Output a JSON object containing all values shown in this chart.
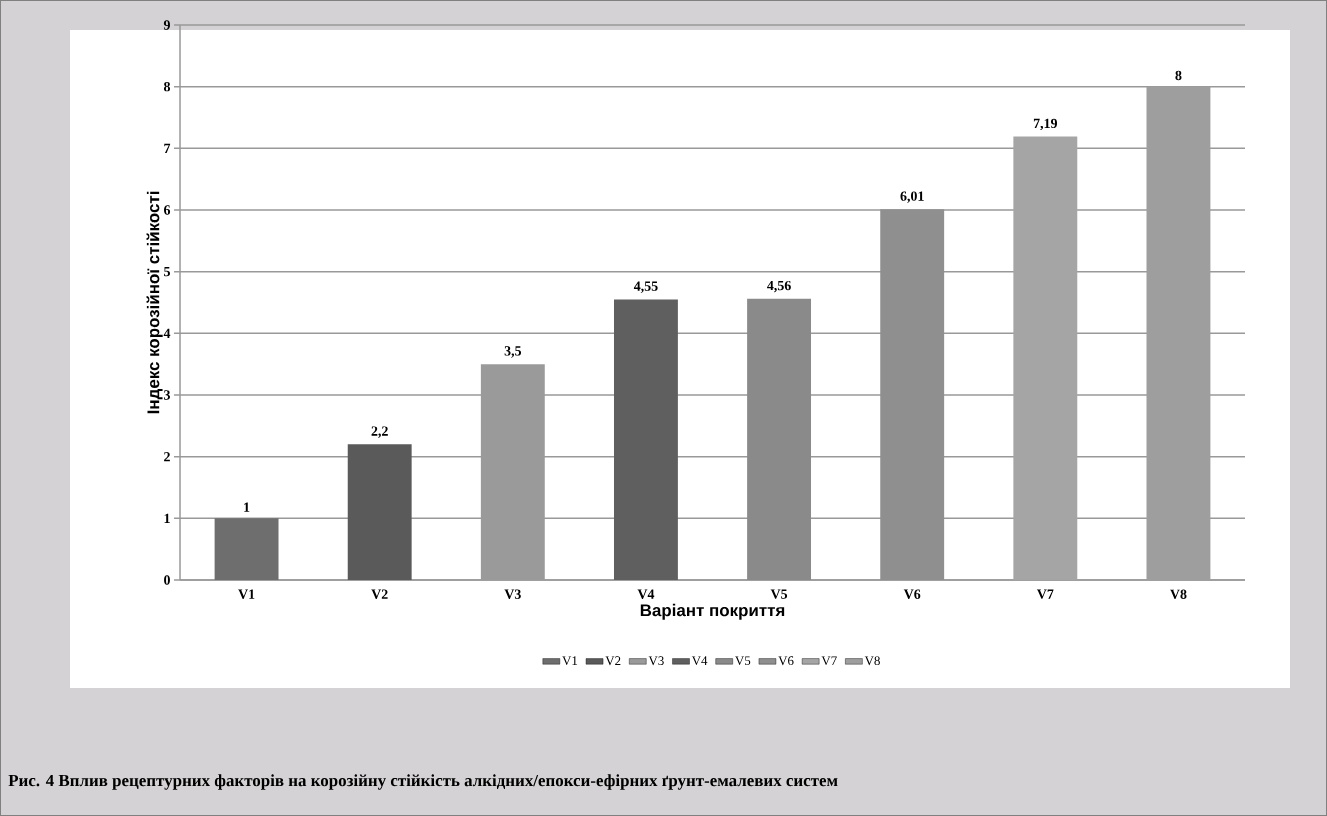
{
  "chart_data": {
    "type": "bar",
    "xlabel": "Варіант покриття",
    "ylabel": "Індекс корозійної стійкості",
    "categories": [
      "V1",
      "V2",
      "V3",
      "V4",
      "V5",
      "V6",
      "V7",
      "V8"
    ],
    "series": [
      {
        "name": "V1",
        "color": "#6e6e6e",
        "values": [
          1,
          null,
          null,
          null,
          null,
          null,
          null,
          null
        ],
        "value_labels": [
          "1",
          null,
          null,
          null,
          null,
          null,
          null,
          null
        ]
      },
      {
        "name": "V2",
        "color": "#5a5a5a",
        "values": [
          null,
          2.2,
          null,
          null,
          null,
          null,
          null,
          null
        ],
        "value_labels": [
          null,
          "2,2",
          null,
          null,
          null,
          null,
          null,
          null
        ]
      },
      {
        "name": "V3",
        "color": "#9a9a9a",
        "values": [
          null,
          null,
          3.5,
          null,
          null,
          null,
          null,
          null
        ],
        "value_labels": [
          null,
          null,
          "3,5",
          null,
          null,
          null,
          null,
          null
        ]
      },
      {
        "name": "V4",
        "color": "#5f5f5f",
        "values": [
          null,
          null,
          null,
          4.55,
          null,
          null,
          null,
          null
        ],
        "value_labels": [
          null,
          null,
          null,
          "4,55",
          null,
          null,
          null,
          null
        ]
      },
      {
        "name": "V5",
        "color": "#8a8a8a",
        "values": [
          null,
          null,
          null,
          null,
          4.56,
          null,
          null,
          null
        ],
        "value_labels": [
          null,
          null,
          null,
          null,
          "4,56",
          null,
          null,
          null
        ]
      },
      {
        "name": "V6",
        "color": "#8f8f8f",
        "values": [
          null,
          null,
          null,
          null,
          null,
          6.01,
          null,
          null
        ],
        "value_labels": [
          null,
          null,
          null,
          null,
          null,
          "6,01",
          null,
          null
        ]
      },
      {
        "name": "V7",
        "color": "#a5a5a5",
        "values": [
          null,
          null,
          null,
          null,
          null,
          null,
          7.19,
          null
        ],
        "value_labels": [
          null,
          null,
          null,
          null,
          null,
          null,
          "7,19",
          null
        ]
      },
      {
        "name": "V8",
        "color": "#9e9e9e",
        "values": [
          null,
          null,
          null,
          null,
          null,
          null,
          null,
          8
        ],
        "value_labels": [
          null,
          null,
          null,
          null,
          null,
          null,
          null,
          "8"
        ]
      }
    ],
    "ylim": [
      0,
      9
    ],
    "yticks": [
      0,
      1,
      2,
      3,
      4,
      5,
      6,
      7,
      8,
      9
    ],
    "grid": "y",
    "legend": "bottom",
    "annotations": [
      "Рис. 4  Вплив рецептурних факторів на корозійну стійкість алкідних/епокси-ефірних ґрунт-емалевих  систем"
    ]
  }
}
